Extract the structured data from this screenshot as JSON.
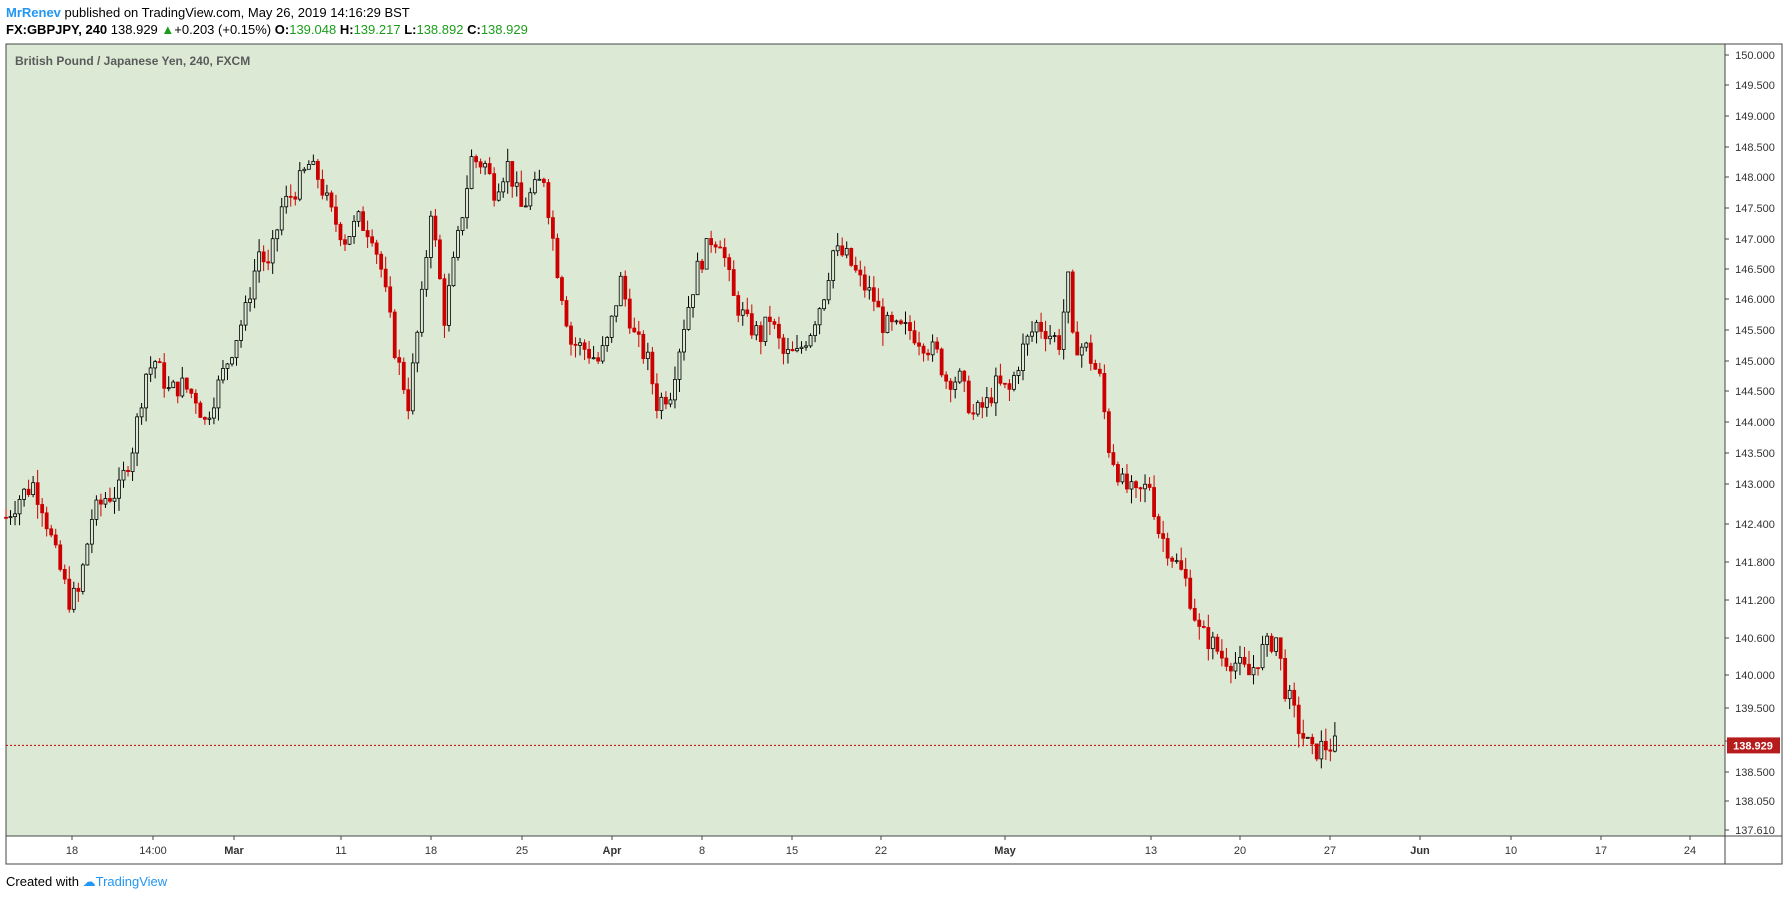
{
  "header": {
    "author": "MrRenev",
    "published_text": "published on TradingView.com, May 26, 2019 14:16:29 BST",
    "symbol": "FX:GBPJPY, 240",
    "price": "138.929",
    "change_arrow": "▲",
    "change": "+0.203 (+0.15%)",
    "o_label": "O:",
    "o_value": "139.048",
    "h_label": "H:",
    "h_value": "139.217",
    "l_label": "L:",
    "l_value": "138.892",
    "c_label": "C:",
    "c_value": "138.929"
  },
  "footer": {
    "created_with": "Created with",
    "brand": "TradingView"
  },
  "colors": {
    "background": "#dcead5",
    "up_candle": "#000000",
    "down_candle": "#cc0000",
    "price_line": "#cc0000",
    "accent": "#2196f3"
  },
  "chart_data": {
    "type": "candlestick",
    "title": "British Pound / Japanese Yen, 240, FXCM",
    "last_price": 138.929,
    "last_price_label": "138.929",
    "y_ticks": [
      "150.000",
      "149.500",
      "149.000",
      "148.500",
      "148.000",
      "147.500",
      "147.000",
      "146.500",
      "146.000",
      "145.500",
      "145.000",
      "144.500",
      "144.000",
      "143.500",
      "143.000",
      "142.400",
      "141.800",
      "141.200",
      "140.600",
      "140.000",
      "139.500",
      "139.000",
      "138.500",
      "138.050",
      "137.610"
    ],
    "x_ticks": [
      "18",
      "14:00",
      "Mar",
      "11",
      "18",
      "25",
      "Apr",
      "8",
      "15",
      "22",
      "May",
      "13",
      "20",
      "27",
      "Jun",
      "10",
      "17",
      "24"
    ],
    "close_path": [
      [
        0,
        142.5
      ],
      [
        3,
        142.8
      ],
      [
        6,
        143.0
      ],
      [
        8,
        142.7
      ],
      [
        11,
        141.9
      ],
      [
        14,
        141.2
      ],
      [
        16,
        141.3
      ],
      [
        19,
        142.5
      ],
      [
        22,
        142.8
      ],
      [
        25,
        142.9
      ],
      [
        28,
        143.6
      ],
      [
        31,
        144.8
      ],
      [
        33,
        145.0
      ],
      [
        36,
        144.5
      ],
      [
        39,
        144.6
      ],
      [
        42,
        144.4
      ],
      [
        44,
        144.0
      ],
      [
        47,
        144.6
      ],
      [
        50,
        145.2
      ],
      [
        53,
        145.8
      ],
      [
        56,
        146.8
      ],
      [
        58,
        146.5
      ],
      [
        61,
        147.5
      ],
      [
        64,
        147.8
      ],
      [
        67,
        148.2
      ],
      [
        69,
        148.0
      ],
      [
        72,
        147.4
      ],
      [
        75,
        147.0
      ],
      [
        78,
        147.3
      ],
      [
        81,
        147.1
      ],
      [
        83,
        146.5
      ],
      [
        86,
        145.2
      ],
      [
        89,
        144.3
      ],
      [
        92,
        146.0
      ],
      [
        94,
        147.5
      ],
      [
        97,
        145.7
      ],
      [
        100,
        147.0
      ],
      [
        103,
        148.3
      ],
      [
        106,
        148.2
      ],
      [
        108,
        147.8
      ],
      [
        111,
        148.2
      ],
      [
        114,
        147.5
      ],
      [
        117,
        147.8
      ],
      [
        119,
        148.0
      ],
      [
        122,
        146.5
      ],
      [
        125,
        145.3
      ],
      [
        128,
        145.2
      ],
      [
        131,
        145.0
      ],
      [
        133,
        145.3
      ],
      [
        136,
        146.3
      ],
      [
        139,
        145.4
      ],
      [
        142,
        145.0
      ],
      [
        144,
        144.3
      ],
      [
        147,
        144.5
      ],
      [
        150,
        145.6
      ],
      [
        153,
        146.5
      ],
      [
        156,
        147.0
      ],
      [
        158,
        147.0
      ],
      [
        161,
        146.0
      ],
      [
        164,
        145.6
      ],
      [
        167,
        145.4
      ],
      [
        169,
        145.7
      ],
      [
        172,
        145.1
      ],
      [
        175,
        145.1
      ],
      [
        178,
        145.5
      ],
      [
        181,
        146.1
      ],
      [
        183,
        146.8
      ],
      [
        186,
        146.7
      ],
      [
        189,
        146.3
      ],
      [
        192,
        146.0
      ],
      [
        194,
        145.6
      ],
      [
        197,
        145.5
      ],
      [
        200,
        145.5
      ],
      [
        203,
        145.3
      ],
      [
        206,
        145.1
      ],
      [
        208,
        144.7
      ],
      [
        211,
        144.7
      ],
      [
        214,
        144.1
      ],
      [
        217,
        144.3
      ],
      [
        219,
        144.6
      ],
      [
        222,
        144.5
      ],
      [
        225,
        145.2
      ],
      [
        228,
        145.6
      ],
      [
        230,
        145.5
      ],
      [
        233,
        145.3
      ],
      [
        235,
        146.3
      ],
      [
        236,
        145.3
      ],
      [
        239,
        145.2
      ],
      [
        242,
        144.7
      ],
      [
        244,
        143.6
      ],
      [
        247,
        143.0
      ],
      [
        250,
        142.8
      ],
      [
        253,
        143.0
      ],
      [
        255,
        142.3
      ],
      [
        258,
        141.9
      ],
      [
        261,
        141.5
      ],
      [
        264,
        140.7
      ],
      [
        267,
        140.5
      ],
      [
        269,
        140.3
      ],
      [
        272,
        140.2
      ],
      [
        275,
        140.0
      ],
      [
        278,
        140.4
      ],
      [
        281,
        140.6
      ],
      [
        283,
        139.8
      ],
      [
        286,
        139.2
      ],
      [
        289,
        138.8
      ],
      [
        291,
        138.9
      ],
      [
        294,
        138.929
      ]
    ]
  }
}
